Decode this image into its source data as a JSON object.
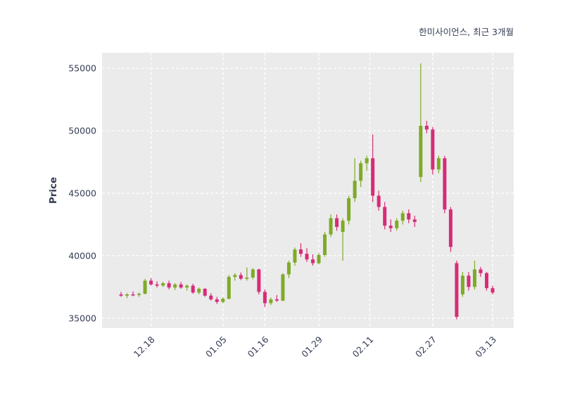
{
  "title": "한미사이언스, 최근 3개월",
  "colors": {
    "up": "#7faa28",
    "down": "#d62c77",
    "plot_bg": "#ebebeb",
    "grid": "#ffffff",
    "text": "#353c55",
    "figure_bg": "#ffffff"
  },
  "chart_data": {
    "type": "candlestick",
    "title": "한미사이언스, 최근 3개월",
    "ylabel": "Price",
    "xlabel": "",
    "grid": true,
    "legend": false,
    "ylim": [
      34200,
      56250
    ],
    "yticks": [
      35000,
      40000,
      45000,
      50000,
      55000
    ],
    "xticks": [
      {
        "label": "12.18",
        "index": 5
      },
      {
        "label": "01.05",
        "index": 17
      },
      {
        "label": "01.16",
        "index": 24
      },
      {
        "label": "01.29",
        "index": 33
      },
      {
        "label": "02.11",
        "index": 41.5
      },
      {
        "label": "02.27",
        "index": 52
      },
      {
        "label": "03.13",
        "index": 62
      }
    ],
    "columns": [
      "date",
      "open",
      "high",
      "low",
      "close"
    ],
    "candles": [
      [
        "12.11",
        36900,
        37100,
        36700,
        36800
      ],
      [
        "12.12",
        36800,
        37000,
        36600,
        36900
      ],
      [
        "12.13",
        36900,
        37150,
        36750,
        36850
      ],
      [
        "12.14",
        36850,
        37050,
        36700,
        36950
      ],
      [
        "12.15",
        36950,
        38150,
        36900,
        38000
      ],
      [
        "12.18",
        38000,
        38200,
        37600,
        37700
      ],
      [
        "12.19",
        37700,
        37950,
        37450,
        37600
      ],
      [
        "12.20",
        37600,
        37900,
        37500,
        37800
      ],
      [
        "12.21",
        37800,
        38000,
        37300,
        37450
      ],
      [
        "12.22",
        37450,
        37800,
        37250,
        37700
      ],
      [
        "12.26",
        37700,
        37900,
        37350,
        37450
      ],
      [
        "12.27",
        37450,
        37700,
        37200,
        37600
      ],
      [
        "12.28",
        37600,
        37750,
        36950,
        37050
      ],
      [
        "12.29",
        37050,
        37450,
        36900,
        37350
      ],
      [
        "01.02",
        37350,
        37400,
        36700,
        36800
      ],
      [
        "01.03",
        36800,
        37000,
        36400,
        36500
      ],
      [
        "01.04",
        36500,
        36700,
        36150,
        36300
      ],
      [
        "01.05",
        36300,
        36650,
        36200,
        36550
      ],
      [
        "01.08",
        36550,
        38450,
        36500,
        38300
      ],
      [
        "01.09",
        38300,
        38600,
        38000,
        38450
      ],
      [
        "01.10",
        38450,
        38650,
        38050,
        38150
      ],
      [
        "01.11",
        38150,
        39050,
        38000,
        38250
      ],
      [
        "01.12",
        38250,
        39000,
        38100,
        38900
      ],
      [
        "01.15",
        38900,
        38950,
        36900,
        37100
      ],
      [
        "01.16",
        37100,
        37300,
        35900,
        36200
      ],
      [
        "01.17",
        36200,
        36650,
        36050,
        36500
      ],
      [
        "01.18",
        36500,
        36850,
        36300,
        36400
      ],
      [
        "01.19",
        36400,
        38600,
        36350,
        38500
      ],
      [
        "01.22",
        38500,
        39600,
        38200,
        39450
      ],
      [
        "01.23",
        39450,
        40650,
        39200,
        40500
      ],
      [
        "01.24",
        40500,
        41000,
        39900,
        40150
      ],
      [
        "01.25",
        40150,
        40600,
        39500,
        39700
      ],
      [
        "01.26",
        39700,
        40100,
        39200,
        39400
      ],
      [
        "01.29",
        39400,
        40200,
        39300,
        40050
      ],
      [
        "01.30",
        40050,
        41900,
        39900,
        41700
      ],
      [
        "01.31",
        41700,
        43300,
        41500,
        43000
      ],
      [
        "02.01",
        43000,
        43300,
        42000,
        42300
      ],
      [
        "02.02",
        41900,
        43000,
        39600,
        42800
      ],
      [
        "02.05",
        42800,
        44800,
        42500,
        44600
      ],
      [
        "02.06",
        44600,
        47800,
        44300,
        46000
      ],
      [
        "02.07",
        46000,
        47600,
        45500,
        47400
      ],
      [
        "02.08",
        47400,
        48000,
        46800,
        47800
      ],
      [
        "02.13",
        47800,
        49700,
        44300,
        44800
      ],
      [
        "02.14",
        44800,
        45200,
        43600,
        43900
      ],
      [
        "02.15",
        43900,
        44300,
        42100,
        42400
      ],
      [
        "02.16",
        42400,
        42900,
        41900,
        42200
      ],
      [
        "02.19",
        42200,
        43000,
        42000,
        42800
      ],
      [
        "02.20",
        42800,
        43600,
        42500,
        43400
      ],
      [
        "02.21",
        43400,
        43700,
        42600,
        42900
      ],
      [
        "02.22",
        42900,
        43200,
        42300,
        42700
      ],
      [
        "02.23",
        46300,
        55400,
        45900,
        50400
      ],
      [
        "02.26",
        50400,
        50800,
        49800,
        50100
      ],
      [
        "02.27",
        50100,
        50300,
        46500,
        46900
      ],
      [
        "02.28",
        46900,
        48000,
        46600,
        47800
      ],
      [
        "02.29",
        47800,
        48000,
        43400,
        43700
      ],
      [
        "03.04",
        43700,
        43900,
        40300,
        40700
      ],
      [
        "03.05",
        39400,
        39600,
        34900,
        35100
      ],
      [
        "03.06",
        36900,
        38700,
        36700,
        38400
      ],
      [
        "03.07",
        38400,
        38700,
        37200,
        37500
      ],
      [
        "03.08",
        37500,
        39600,
        37300,
        38900
      ],
      [
        "03.11",
        38900,
        39100,
        38300,
        38600
      ],
      [
        "03.12",
        38600,
        38700,
        37200,
        37400
      ],
      [
        "03.13",
        37400,
        37600,
        36900,
        37050
      ]
    ]
  }
}
